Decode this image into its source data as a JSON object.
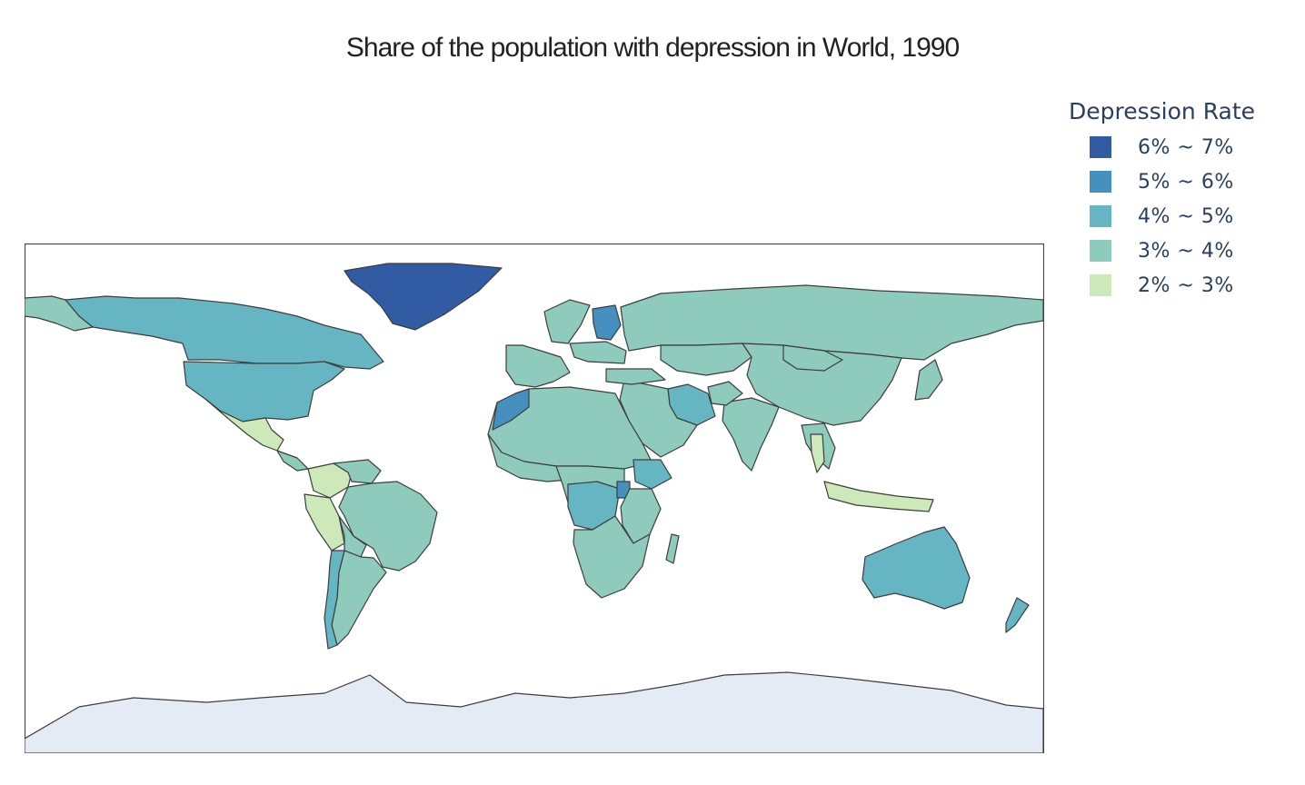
{
  "title": "Share of the population with depression in World, 1990",
  "legend": {
    "title": "Depression Rate",
    "items": [
      {
        "label": "6% ~ 7%",
        "color": "#315ba2"
      },
      {
        "label": "5% ~ 6%",
        "color": "#4690bf"
      },
      {
        "label": "4% ~ 5%",
        "color": "#65b5c2"
      },
      {
        "label": "3% ~ 4%",
        "color": "#8fcbbc"
      },
      {
        "label": "2% ~ 3%",
        "color": "#cde8b9"
      }
    ]
  },
  "map": {
    "land_border_color": "#3d3d3d",
    "antarctica_color": "#e4ebf5",
    "regions": [
      {
        "name": "Greenland",
        "band": "6% ~ 7%"
      },
      {
        "name": "Finland",
        "band": "5% ~ 6%"
      },
      {
        "name": "Morocco",
        "band": "5% ~ 6%"
      },
      {
        "name": "Uganda",
        "band": "5% ~ 6%"
      },
      {
        "name": "Canada",
        "band": "4% ~ 5%"
      },
      {
        "name": "United States",
        "band": "4% ~ 5%"
      },
      {
        "name": "Australia",
        "band": "4% ~ 5%"
      },
      {
        "name": "DR Congo",
        "band": "4% ~ 5%"
      },
      {
        "name": "Ethiopia",
        "band": "4% ~ 5%"
      },
      {
        "name": "Iran",
        "band": "4% ~ 5%"
      },
      {
        "name": "Chile",
        "band": "4% ~ 5%"
      },
      {
        "name": "New Zealand",
        "band": "4% ~ 5%"
      },
      {
        "name": "Russia",
        "band": "3% ~ 4%"
      },
      {
        "name": "China",
        "band": "3% ~ 4%"
      },
      {
        "name": "Brazil",
        "band": "3% ~ 4%"
      },
      {
        "name": "India",
        "band": "3% ~ 4%"
      },
      {
        "name": "Argentina",
        "band": "3% ~ 4%"
      },
      {
        "name": "Mexico",
        "band": "2% ~ 3%"
      },
      {
        "name": "Colombia",
        "band": "2% ~ 3%"
      },
      {
        "name": "Peru",
        "band": "2% ~ 3%"
      },
      {
        "name": "Thailand",
        "band": "2% ~ 3%"
      },
      {
        "name": "Indonesia",
        "band": "2% ~ 3%"
      }
    ]
  }
}
